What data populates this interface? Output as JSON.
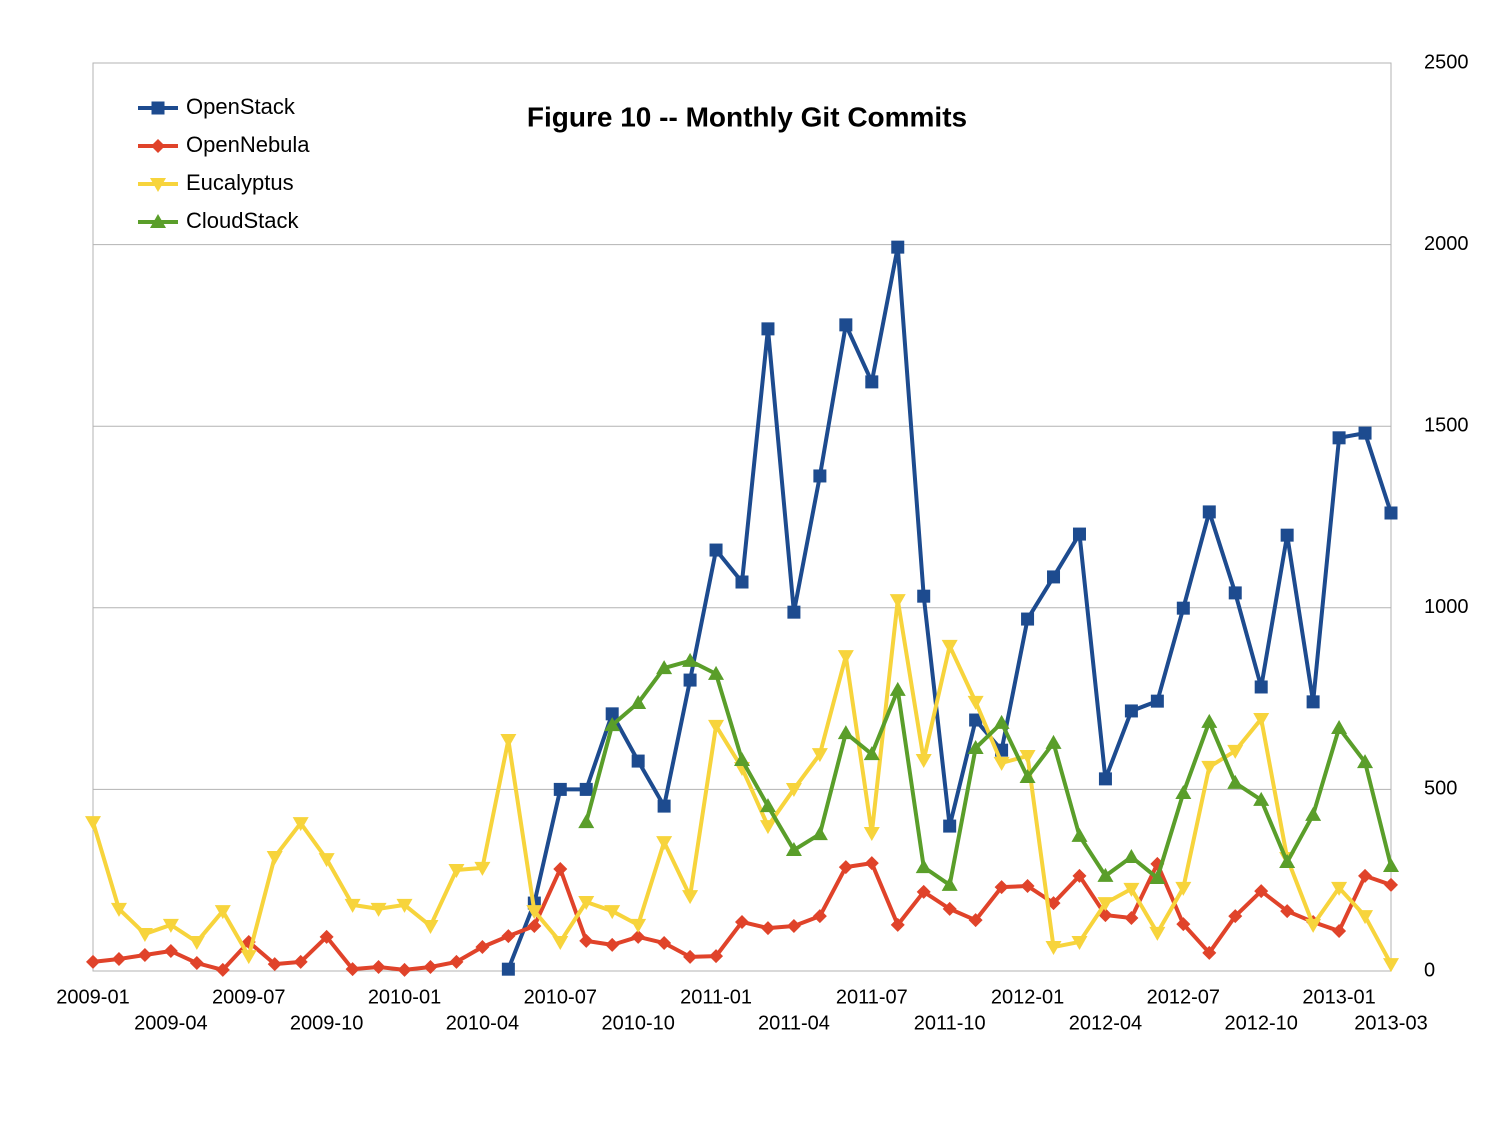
{
  "chart_data": {
    "type": "line",
    "title": "Figure 10 -- Monthly Git Commits",
    "categories": [
      "2009-01",
      null,
      null,
      "2009-04",
      null,
      null,
      "2009-07",
      null,
      null,
      "2009-10",
      null,
      null,
      "2010-01",
      null,
      null,
      "2010-04",
      null,
      null,
      "2010-07",
      null,
      null,
      "2010-10",
      null,
      null,
      "2011-01",
      null,
      null,
      "2011-04",
      null,
      null,
      "2011-07",
      null,
      null,
      "2011-10",
      null,
      null,
      "2012-01",
      null,
      null,
      "2012-04",
      null,
      null,
      "2012-07",
      null,
      null,
      "2012-10",
      null,
      null,
      "2013-01",
      null,
      "2013-03"
    ],
    "series": [
      {
        "name": "OpenStack",
        "color": "#1d4b8f",
        "marker": "square",
        "values": [
          null,
          null,
          null,
          null,
          null,
          null,
          null,
          null,
          null,
          null,
          null,
          null,
          null,
          null,
          null,
          null,
          5,
          187,
          500,
          500,
          708,
          578,
          454,
          801,
          1159,
          1071,
          1768,
          988,
          1363,
          1779,
          1622,
          1993,
          1032,
          399,
          691,
          608,
          969,
          1085,
          1203,
          529,
          716,
          743,
          999,
          1264,
          1041,
          782,
          1200,
          741,
          1468,
          1481,
          1261
        ]
      },
      {
        "name": "OpenNebula",
        "color": "#e0432a",
        "marker": "diamond",
        "values": [
          25,
          33,
          44,
          55,
          22,
          3,
          80,
          19,
          25,
          94,
          5,
          11,
          3,
          11,
          25,
          66,
          96,
          124,
          281,
          83,
          72,
          94,
          77,
          39,
          41,
          135,
          118,
          124,
          151,
          286,
          297,
          127,
          218,
          171,
          140,
          231,
          234,
          187,
          262,
          154,
          146,
          295,
          129,
          50,
          151,
          220,
          165,
          135,
          110,
          262,
          237
        ]
      },
      {
        "name": "Eucalyptus",
        "color": "#f7d43c",
        "marker": "triangle-down",
        "values": [
          410,
          171,
          102,
          127,
          80,
          165,
          41,
          314,
          407,
          308,
          182,
          171,
          182,
          124,
          278,
          284,
          636,
          165,
          80,
          190,
          165,
          127,
          355,
          206,
          675,
          559,
          399,
          501,
          597,
          867,
          380,
          1021,
          581,
          895,
          741,
          573,
          592,
          66,
          80,
          187,
          226,
          105,
          229,
          562,
          606,
          694,
          311,
          127,
          229,
          151,
          19
        ]
      },
      {
        "name": "CloudStack",
        "color": "#5a9e2a",
        "marker": "triangle-up",
        "values": [
          null,
          null,
          null,
          null,
          null,
          null,
          null,
          null,
          null,
          null,
          null,
          null,
          null,
          null,
          null,
          null,
          null,
          null,
          null,
          410,
          677,
          738,
          834,
          854,
          818,
          581,
          454,
          333,
          377,
          655,
          597,
          774,
          286,
          237,
          614,
          683,
          534,
          628,
          372,
          262,
          314,
          256,
          490,
          686,
          518,
          471,
          300,
          430,
          669,
          575,
          289
        ]
      }
    ],
    "ylim": [
      0,
      2500
    ],
    "yticks": [
      0,
      500,
      1000,
      1500,
      2000,
      2500
    ],
    "grid": true,
    "legend": "top-left"
  }
}
